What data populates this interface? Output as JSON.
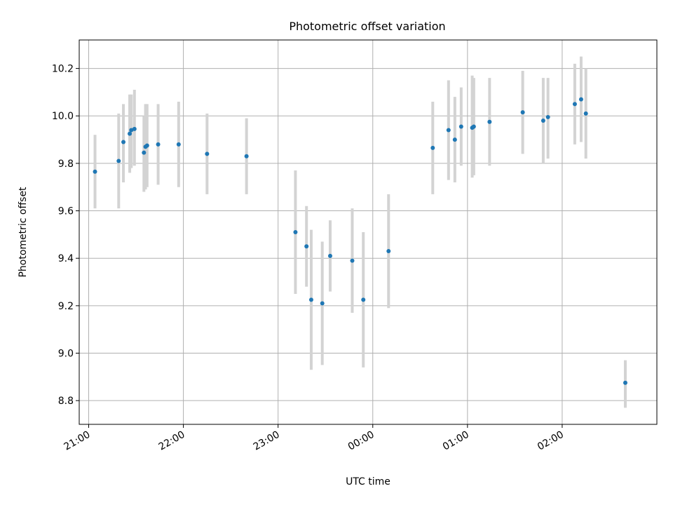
{
  "chart_data": {
    "type": "scatter",
    "title": "Photometric offset variation",
    "xlabel": "UTC time",
    "ylabel": "Photometric offset",
    "x_axis_type": "time",
    "xlim": [
      "20:54",
      "27:00"
    ],
    "ylim": [
      8.7,
      10.32
    ],
    "x_ticks": [
      {
        "value": "21:00",
        "label": "21:00"
      },
      {
        "value": "22:00",
        "label": "22:00"
      },
      {
        "value": "23:00",
        "label": "23:00"
      },
      {
        "value": "24:00",
        "label": "00:00"
      },
      {
        "value": "25:00",
        "label": "01:00"
      },
      {
        "value": "26:00",
        "label": "02:00"
      }
    ],
    "y_ticks": [
      8.8,
      9.0,
      9.2,
      9.4,
      9.6,
      9.8,
      10.0,
      10.2
    ],
    "y_tick_labels": [
      "8.8",
      "9.0",
      "9.2",
      "9.4",
      "9.6",
      "9.8",
      "10.0",
      "10.2"
    ],
    "grid": true,
    "colors": {
      "marker": "#1f77b4",
      "errorbar": "#d3d3d3"
    },
    "series": [
      {
        "points": [
          {
            "x": "21:04",
            "y": 9.765,
            "low": 9.61,
            "high": 9.92
          },
          {
            "x": "21:19",
            "y": 9.81,
            "low": 9.61,
            "high": 10.01
          },
          {
            "x": "21:22",
            "y": 9.89,
            "low": 9.72,
            "high": 10.05
          },
          {
            "x": "21:26",
            "y": 9.925,
            "low": 9.76,
            "high": 10.09
          },
          {
            "x": "21:27",
            "y": 9.94,
            "low": 9.78,
            "high": 10.09
          },
          {
            "x": "21:29",
            "y": 9.945,
            "low": 9.79,
            "high": 10.11
          },
          {
            "x": "21:35",
            "y": 9.845,
            "low": 9.68,
            "high": 10.0
          },
          {
            "x": "21:36",
            "y": 9.87,
            "low": 9.69,
            "high": 10.05
          },
          {
            "x": "21:37",
            "y": 9.875,
            "low": 9.7,
            "high": 10.05
          },
          {
            "x": "21:44",
            "y": 9.88,
            "low": 9.71,
            "high": 10.05
          },
          {
            "x": "21:57",
            "y": 9.88,
            "low": 9.7,
            "high": 10.06
          },
          {
            "x": "22:15",
            "y": 9.84,
            "low": 9.67,
            "high": 10.01
          },
          {
            "x": "22:40",
            "y": 9.83,
            "low": 9.67,
            "high": 9.99
          },
          {
            "x": "23:11",
            "y": 9.51,
            "low": 9.25,
            "high": 9.77
          },
          {
            "x": "23:18",
            "y": 9.45,
            "low": 9.28,
            "high": 9.62
          },
          {
            "x": "23:21",
            "y": 9.225,
            "low": 8.93,
            "high": 9.52
          },
          {
            "x": "23:28",
            "y": 9.21,
            "low": 8.95,
            "high": 9.47
          },
          {
            "x": "23:33",
            "y": 9.41,
            "low": 9.26,
            "high": 9.56
          },
          {
            "x": "23:47",
            "y": 9.39,
            "low": 9.17,
            "high": 9.61
          },
          {
            "x": "23:54",
            "y": 9.225,
            "low": 8.94,
            "high": 9.51
          },
          {
            "x": "24:10",
            "y": 9.43,
            "low": 9.19,
            "high": 9.67
          },
          {
            "x": "24:38",
            "y": 9.865,
            "low": 9.67,
            "high": 10.06
          },
          {
            "x": "24:48",
            "y": 9.94,
            "low": 9.73,
            "high": 10.15
          },
          {
            "x": "24:52",
            "y": 9.9,
            "low": 9.72,
            "high": 10.08
          },
          {
            "x": "24:56",
            "y": 9.955,
            "low": 9.79,
            "high": 10.12
          },
          {
            "x": "25:03",
            "y": 9.95,
            "low": 9.74,
            "high": 10.17
          },
          {
            "x": "25:04",
            "y": 9.955,
            "low": 9.75,
            "high": 10.16
          },
          {
            "x": "25:14",
            "y": 9.975,
            "low": 9.79,
            "high": 10.16
          },
          {
            "x": "25:35",
            "y": 10.015,
            "low": 9.84,
            "high": 10.19
          },
          {
            "x": "25:48",
            "y": 9.98,
            "low": 9.8,
            "high": 10.16
          },
          {
            "x": "25:51",
            "y": 9.995,
            "low": 9.82,
            "high": 10.16
          },
          {
            "x": "26:08",
            "y": 10.05,
            "low": 9.88,
            "high": 10.22
          },
          {
            "x": "26:12",
            "y": 10.07,
            "low": 9.89,
            "high": 10.25
          },
          {
            "x": "26:15",
            "y": 10.01,
            "low": 9.82,
            "high": 10.2
          },
          {
            "x": "26:40",
            "y": 8.875,
            "low": 8.77,
            "high": 8.97
          }
        ]
      }
    ]
  }
}
